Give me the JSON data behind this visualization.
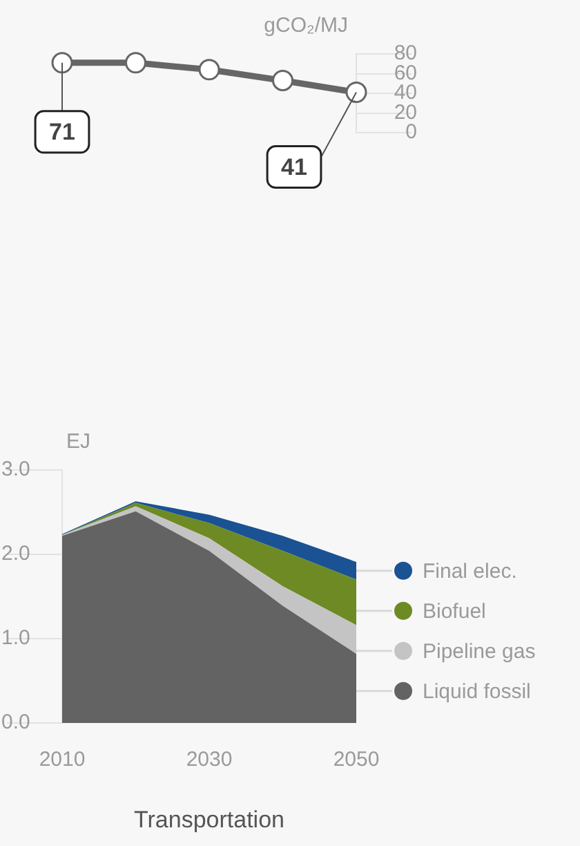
{
  "chart_data": [
    {
      "type": "line",
      "ylabel": "gCO₂/MJ",
      "x": [
        2010,
        2020,
        2030,
        2040,
        2050
      ],
      "xlim": [
        2010,
        2050
      ],
      "ylim": [
        0,
        80
      ],
      "yticks": [
        0,
        20,
        40,
        60,
        80
      ],
      "tick_labels": "y",
      "marker": "circle",
      "color": "#666666",
      "values": [
        71,
        71,
        64,
        53,
        41
      ],
      "value_labels": [
        "71",
        null,
        null,
        null,
        "41"
      ]
    },
    {
      "type": "area",
      "stacked": true,
      "legend": "right",
      "xlabel": "Transportation",
      "ylabel": "EJ",
      "x": [
        2010,
        2020,
        2030,
        2040,
        2050
      ],
      "xlim": [
        2010,
        2050
      ],
      "xticks": [
        2010,
        2030,
        2050
      ],
      "ylim": [
        0,
        3
      ],
      "yticks": [
        {
          "value": 0,
          "label": "0.0"
        },
        {
          "value": 1,
          "label": "1.0"
        },
        {
          "value": 2,
          "label": "2.0"
        },
        {
          "value": 3,
          "label": "3.0"
        }
      ],
      "series": [
        {
          "name": "Liquid fossil",
          "color": "#636363",
          "values": [
            2.22,
            2.51,
            2.04,
            1.39,
            0.82
          ]
        },
        {
          "name": "Pipeline gas",
          "color": "#c4c4c4",
          "values": [
            0.01,
            0.06,
            0.15,
            0.23,
            0.34
          ]
        },
        {
          "name": "Biofuel",
          "color": "#6e8a24",
          "values": [
            0,
            0.04,
            0.18,
            0.42,
            0.54
          ]
        },
        {
          "name": "Final elec.",
          "color": "#1a5294",
          "values": [
            0.01,
            0.02,
            0.1,
            0.18,
            0.21
          ]
        }
      ]
    }
  ]
}
